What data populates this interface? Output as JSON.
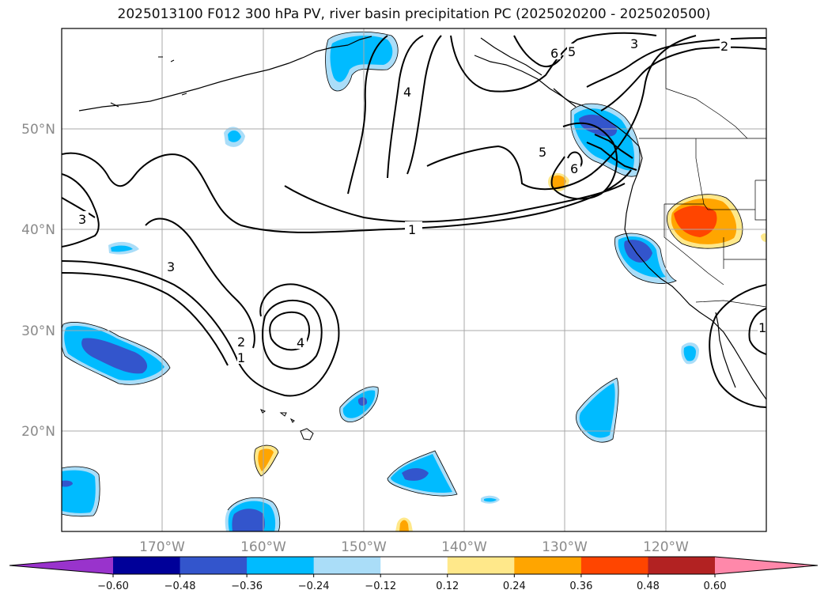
{
  "title": "2025013100 F012 300 hPa PV, river basin precipitation PC (2025020200 - 2025020500)",
  "lat_labels": [
    "50°N",
    "40°N",
    "30°N",
    "20°N"
  ],
  "lon_labels": [
    "170°W",
    "160°W",
    "150°W",
    "140°W",
    "130°W",
    "120°W"
  ],
  "contour_labels": [
    "1",
    "2",
    "3",
    "4",
    "5",
    "6"
  ],
  "colorbar": {
    "ticks": [
      "−0.60",
      "−0.48",
      "−0.36",
      "−0.24",
      "−0.12",
      "0.12",
      "0.24",
      "0.36",
      "0.48",
      "0.60"
    ],
    "colors": [
      "#9933cc",
      "#000099",
      "#3355cc",
      "#00bbff",
      "#aaddf8",
      "#ffffff",
      "#ffe88a",
      "#ffa500",
      "#ff4500",
      "#b22222",
      "#ff88aa"
    ]
  },
  "map": {
    "lat_range": [
      10,
      60
    ],
    "lon_range": [
      -180,
      -110
    ],
    "gridlines": true
  }
}
